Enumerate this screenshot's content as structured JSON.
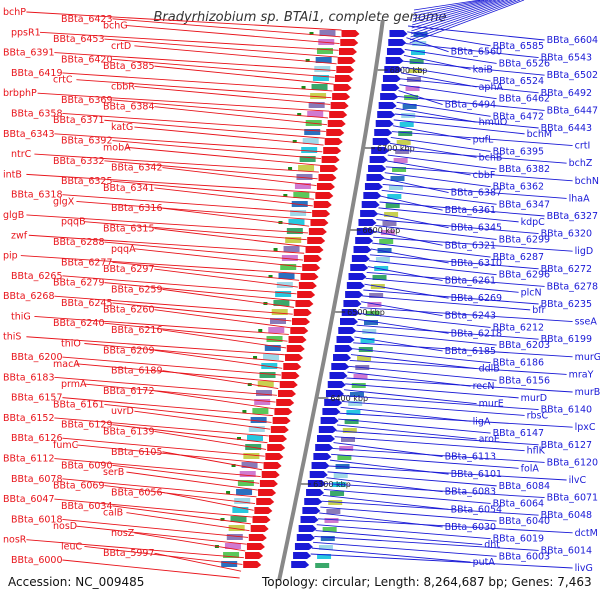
{
  "title": "Bradyrhizobium sp. BTAi1, complete genome",
  "accession_text": "Accession: NC_009485",
  "topology_text": "Topology: circular; Length: 8,264,687 bp; Genes: 7,463",
  "colors": {
    "reverse_strand": "#e8141b",
    "forward_strand": "#1a1ad6",
    "backbone": "#888888"
  },
  "kbp_ticks": [
    "6800 kbp",
    "6700 kbp",
    "6600 kbp",
    "6500 kbp",
    "6400 kbp",
    "6300 kbp"
  ],
  "left_labels": [
    "bchP",
    "BBta_6423",
    "bchG",
    "ppsR1",
    "BBta_6453",
    "crtD",
    "BBta_6391",
    "BBta_6420",
    "BBta_6385",
    "BBta_6419",
    "crtC",
    "cbbR",
    "brbphP",
    "BBta_6369",
    "BBta_6384",
    "BBta_6358",
    "BBta_6371",
    "katG",
    "BBta_6343",
    "BBta_6392",
    "mobA",
    "ntrC",
    "BBta_6332",
    "BBta_6342",
    "intB",
    "BBta_6325",
    "BBta_6341",
    "BBta_6318",
    "glgX",
    "BBta_6316",
    "glgB",
    "pqqB",
    "BBta_6315",
    "zwf",
    "BBta_6288",
    "pqqA",
    "pip",
    "BBta_6277",
    "BBta_6297",
    "BBta_6265",
    "BBta_6279",
    "BBta_6259",
    "BBta_6268",
    "BBta_6245",
    "BBta_6260",
    "thiG",
    "BBta_6240",
    "BBta_6216",
    "thiS",
    "thiO",
    "BBta_6209",
    "BBta_6200",
    "macA",
    "BBta_6189",
    "BBta_6183",
    "prmA",
    "BBta_6172",
    "BBta_6157",
    "BBta_6161",
    "uvrD",
    "BBta_6152",
    "BBta_6129",
    "BBta_6139",
    "BBta_6126",
    "fumC",
    "BBta_6105",
    "BBta_6112",
    "BBta_6090",
    "serB",
    "BBta_6078",
    "BBta_6069",
    "BBta_6056",
    "BBta_6047",
    "BBta_6034",
    "calB",
    "BBta_6018",
    "nosD",
    "nosZ",
    "nosR",
    "leuC",
    "BBta_5997",
    "BBta_6000"
  ],
  "right_labels": [
    "BBta_6604",
    "BBta_6585",
    "BBta_6560",
    "BBta_6543",
    "BBta_6526",
    "kaiB",
    "BBta_6502",
    "BBta_6524",
    "aphA",
    "BBta_6492",
    "BBta_6462",
    "BBta_6494",
    "BBta_6447",
    "BBta_6472",
    "hmuO",
    "BBta_6443",
    "bchM",
    "pufL",
    "crtI",
    "BBta_6395",
    "bchB",
    "bchZ",
    "BBta_6382",
    "cbbF",
    "bchN",
    "BBta_6362",
    "BBta_6387",
    "lhaA",
    "BBta_6347",
    "BBta_6361",
    "BBta_6327",
    "kdpC",
    "BBta_6345",
    "BBta_6320",
    "BBta_6299",
    "BBta_6321",
    "ligD",
    "BBta_6287",
    "BBta_6310",
    "BBta_6272",
    "BBta_6296",
    "BBta_6261",
    "BBta_6278",
    "plcN",
    "BBta_6269",
    "BBta_6235",
    "bfr",
    "BBta_6243",
    "sseA",
    "BBta_6212",
    "BBta_6218",
    "BBta_6199",
    "BBta_6203",
    "BBta_6185",
    "murG",
    "BBta_6186",
    "ddlB",
    "mraY",
    "BBta_6156",
    "recN",
    "murB",
    "murD",
    "murE",
    "BBta_6140",
    "rbsC",
    "ligA",
    "lpxC",
    "BBta_6147",
    "aroE",
    "BBta_6127",
    "hflK",
    "BBta_6113",
    "BBta_6120",
    "folA",
    "BBta_6101",
    "ilvC",
    "BBta_6084",
    "BBta_6083",
    "BBta_6071",
    "BBta_6064",
    "BBta_6054",
    "BBta_6048",
    "BBta_6040",
    "BBta_6030",
    "dctM",
    "BBta_6019",
    "dht",
    "BBta_6014",
    "BBta_6003",
    "putA",
    "livG"
  ]
}
